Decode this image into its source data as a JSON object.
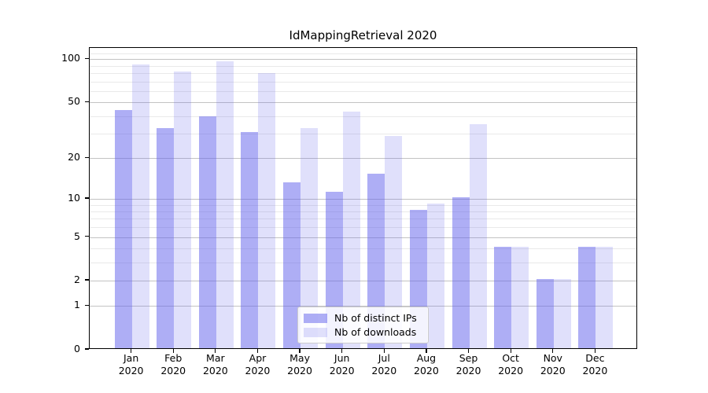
{
  "title": "IdMappingRetrieval 2020",
  "chart_data": {
    "type": "bar",
    "title": "IdMappingRetrieval 2020",
    "categories": [
      "Jan",
      "Feb",
      "Mar",
      "Apr",
      "May",
      "Jun",
      "Jul",
      "Aug",
      "Sep",
      "Oct",
      "Nov",
      "Dec"
    ],
    "x_tick_year": "2020",
    "series": [
      {
        "name": "Nb of distinct IPs",
        "color": "rgba(99,99,235,0.52)",
        "values": [
          43,
          32,
          39,
          30,
          13,
          11,
          15,
          8,
          10,
          4,
          2,
          4
        ]
      },
      {
        "name": "Nb of downloads",
        "color": "rgba(99,99,235,0.20)",
        "values": [
          90,
          80,
          95,
          78,
          32,
          42,
          28,
          9,
          34,
          4,
          2,
          4
        ]
      }
    ],
    "yscale": "log1p",
    "ylim": [
      0,
      120
    ],
    "y_major_ticks": [
      0,
      1,
      2,
      5,
      10,
      20,
      50,
      100
    ],
    "y_minor_gridlines": [
      3,
      4,
      6,
      7,
      8,
      9,
      30,
      40,
      60,
      70,
      80,
      90,
      110
    ],
    "grid": "horizontal",
    "legend_position": "lower center",
    "colors": {
      "major_grid": "#c3c3c3",
      "minor_grid": "#e9e9e9",
      "axis": "#000000"
    }
  }
}
